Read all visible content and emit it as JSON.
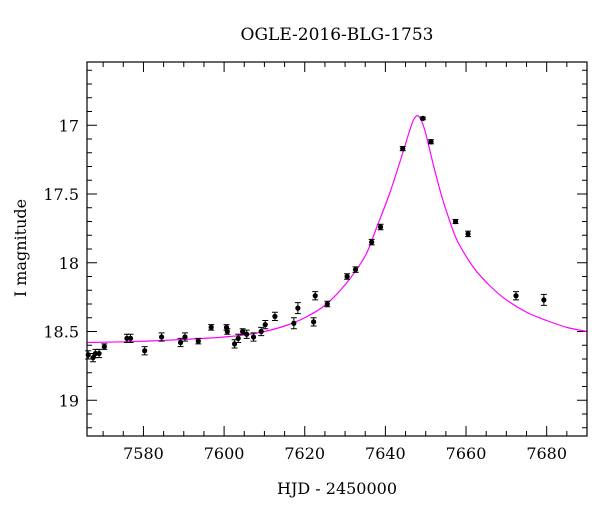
{
  "chart_data": {
    "type": "scatter",
    "title": "OGLE-2016-BLG-1753",
    "xlabel": "HJD - 2450000",
    "ylabel": "I magnitude",
    "xlim": [
      7566,
      7690
    ],
    "ylim": [
      19.26,
      16.54
    ],
    "y_inverted": true,
    "x_ticks": [
      7580,
      7600,
      7620,
      7640,
      7660,
      7680
    ],
    "x_tick_labels": [
      "7580",
      "7600",
      "7620",
      "7640",
      "7660",
      "7680"
    ],
    "y_ticks": [
      17,
      17.5,
      18,
      18.5,
      19
    ],
    "y_tick_labels": [
      "17",
      "17.5",
      "18",
      "18.5",
      "19"
    ],
    "marker_color": "#000000",
    "model_color": "#ff00ff",
    "series": [
      {
        "kind": "points_with_errorbars",
        "x": [
          7566.3,
          7567.5,
          7568.1,
          7569.0,
          7570.3,
          7575.9,
          7576.8,
          7580.3,
          7584.5,
          7589.2,
          7590.3,
          7593.6,
          7596.8,
          7600.6,
          7600.8,
          7602.6,
          7603.5,
          7604.6,
          7605.6,
          7607.3,
          7609.2,
          7610.2,
          7612.6,
          7617.3,
          7618.3,
          7622.2,
          7622.6,
          7625.6,
          7630.5,
          7632.6,
          7636.6,
          7638.8,
          7644.3,
          7649.3,
          7651.3,
          7657.4,
          7660.5,
          7672.4,
          7679.3
        ],
        "y": [
          18.67,
          18.69,
          18.66,
          18.66,
          18.61,
          18.55,
          18.55,
          18.64,
          18.54,
          18.58,
          18.54,
          18.57,
          18.47,
          18.47,
          18.5,
          18.59,
          18.55,
          18.5,
          18.52,
          18.54,
          18.5,
          18.45,
          18.39,
          18.44,
          18.33,
          18.43,
          18.24,
          18.3,
          18.1,
          18.05,
          17.85,
          17.74,
          17.17,
          16.95,
          17.12,
          17.7,
          17.79,
          18.24,
          18.27
        ],
        "yerr": [
          0.03,
          0.03,
          0.03,
          0.03,
          0.02,
          0.03,
          0.03,
          0.03,
          0.03,
          0.03,
          0.03,
          0.02,
          0.02,
          0.02,
          0.02,
          0.03,
          0.03,
          0.02,
          0.03,
          0.03,
          0.03,
          0.03,
          0.03,
          0.04,
          0.04,
          0.03,
          0.03,
          0.02,
          0.02,
          0.02,
          0.02,
          0.02,
          0.015,
          0.01,
          0.015,
          0.015,
          0.02,
          0.03,
          0.04
        ]
      },
      {
        "kind": "model_curve",
        "x": [
          7566,
          7575,
          7585,
          7595,
          7600,
          7605,
          7610,
          7615,
          7620,
          7625,
          7630,
          7635,
          7638,
          7641,
          7644,
          7646,
          7647,
          7648,
          7649,
          7650,
          7651,
          7652,
          7654,
          7656,
          7658,
          7662,
          7666,
          7670,
          7675,
          7680,
          7685,
          7690
        ],
        "y": [
          18.58,
          18.575,
          18.565,
          18.55,
          18.54,
          18.525,
          18.5,
          18.46,
          18.4,
          18.31,
          18.16,
          17.95,
          17.73,
          17.5,
          17.23,
          17.04,
          16.96,
          16.93,
          16.97,
          17.06,
          17.18,
          17.3,
          17.52,
          17.7,
          17.85,
          18.04,
          18.17,
          18.27,
          18.36,
          18.42,
          18.47,
          18.5
        ]
      }
    ]
  }
}
